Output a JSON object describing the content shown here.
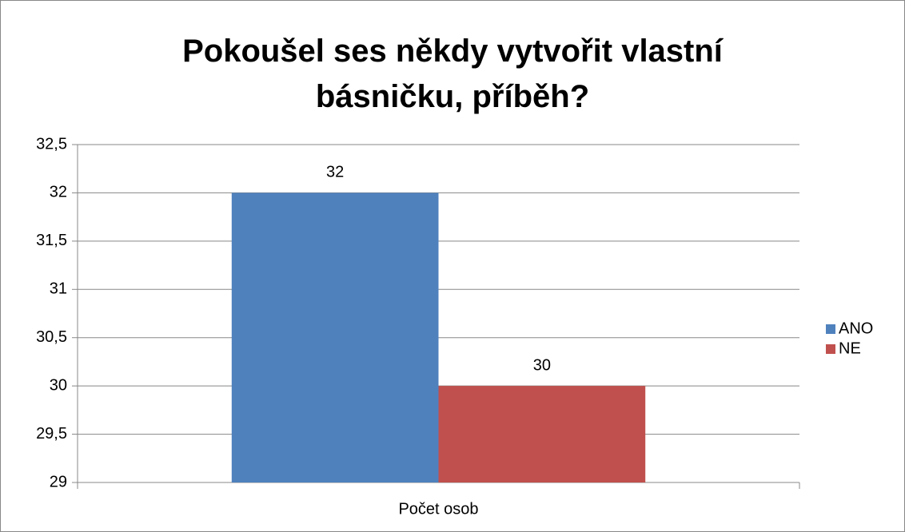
{
  "chart_data": {
    "type": "bar",
    "title": "Pokoušel ses někdy vytvořit vlastní básničku, příběh?",
    "categories": [
      "Počet osob"
    ],
    "series": [
      {
        "name": "ANO",
        "color": "#4f81bd",
        "values": [
          32
        ]
      },
      {
        "name": "NE",
        "color": "#c0504d",
        "values": [
          30
        ]
      }
    ],
    "ylim": [
      29,
      32.5
    ],
    "yticks": [
      29,
      {
        "value": 29.5,
        "label": "29,5"
      },
      30,
      {
        "value": 30.5,
        "label": "30,5"
      },
      31,
      {
        "value": 31.5,
        "label": "31,5"
      },
      32,
      {
        "value": 32.5,
        "label": "32,5"
      }
    ],
    "grid": true,
    "legend": "right"
  }
}
